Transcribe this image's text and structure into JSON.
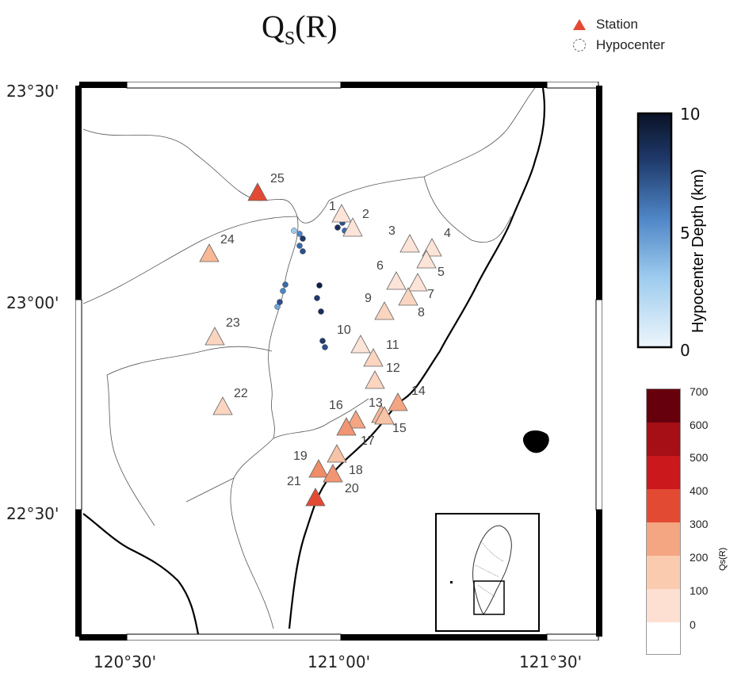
{
  "title": {
    "main": "Q",
    "sub": "S",
    "suffix": "(R)"
  },
  "legend": {
    "station_label": "Station",
    "hypocenter_label": "Hypocenter"
  },
  "axes": {
    "lat_labels": [
      "23°30'",
      "23°00'",
      "22°30'"
    ],
    "lon_labels": [
      "120°30'",
      "121°00'",
      "121°30'"
    ]
  },
  "depth_colorbar": {
    "title": "Hypocenter Depth (km)",
    "ticks": [
      "10",
      "5",
      "0"
    ],
    "range": [
      0,
      10
    ]
  },
  "qs_colorbar": {
    "title": "Qs(R)",
    "ticks": [
      "700",
      "600",
      "500",
      "400",
      "300",
      "200",
      "100",
      "0"
    ],
    "colors": [
      "#67000d",
      "#a50f15",
      "#cb181d",
      "#e34a33",
      "#f4a582",
      "#fbcbb0",
      "#fde0d2",
      "#ffffff"
    ]
  },
  "stations": [
    {
      "id": "1",
      "color": "#fde4d8"
    },
    {
      "id": "2",
      "color": "#fde4d8"
    },
    {
      "id": "3",
      "color": "#fde4d8"
    },
    {
      "id": "4",
      "color": "#fde4d8"
    },
    {
      "id": "5",
      "color": "#fde4d8"
    },
    {
      "id": "6",
      "color": "#fde4d8"
    },
    {
      "id": "7",
      "color": "#fde4d8"
    },
    {
      "id": "8",
      "color": "#fbd5c0"
    },
    {
      "id": "9",
      "color": "#fbd5c0"
    },
    {
      "id": "10",
      "color": "#fde4d8"
    },
    {
      "id": "11",
      "color": "#fbd5c0"
    },
    {
      "id": "12",
      "color": "#fbd5c0"
    },
    {
      "id": "13",
      "color": "#f8b896"
    },
    {
      "id": "14",
      "color": "#f4a582"
    },
    {
      "id": "15",
      "color": "#f8c3a6"
    },
    {
      "id": "16",
      "color": "#f4a582"
    },
    {
      "id": "17",
      "color": "#f19573"
    },
    {
      "id": "18",
      "color": "#f8c3a6"
    },
    {
      "id": "19",
      "color": "#f08c68"
    },
    {
      "id": "20",
      "color": "#f19573"
    },
    {
      "id": "21",
      "color": "#e34a33"
    },
    {
      "id": "22",
      "color": "#fbd5c0"
    },
    {
      "id": "23",
      "color": "#fbd5c0"
    },
    {
      "id": "24",
      "color": "#f8b896"
    },
    {
      "id": "25",
      "color": "#e34a33"
    }
  ]
}
